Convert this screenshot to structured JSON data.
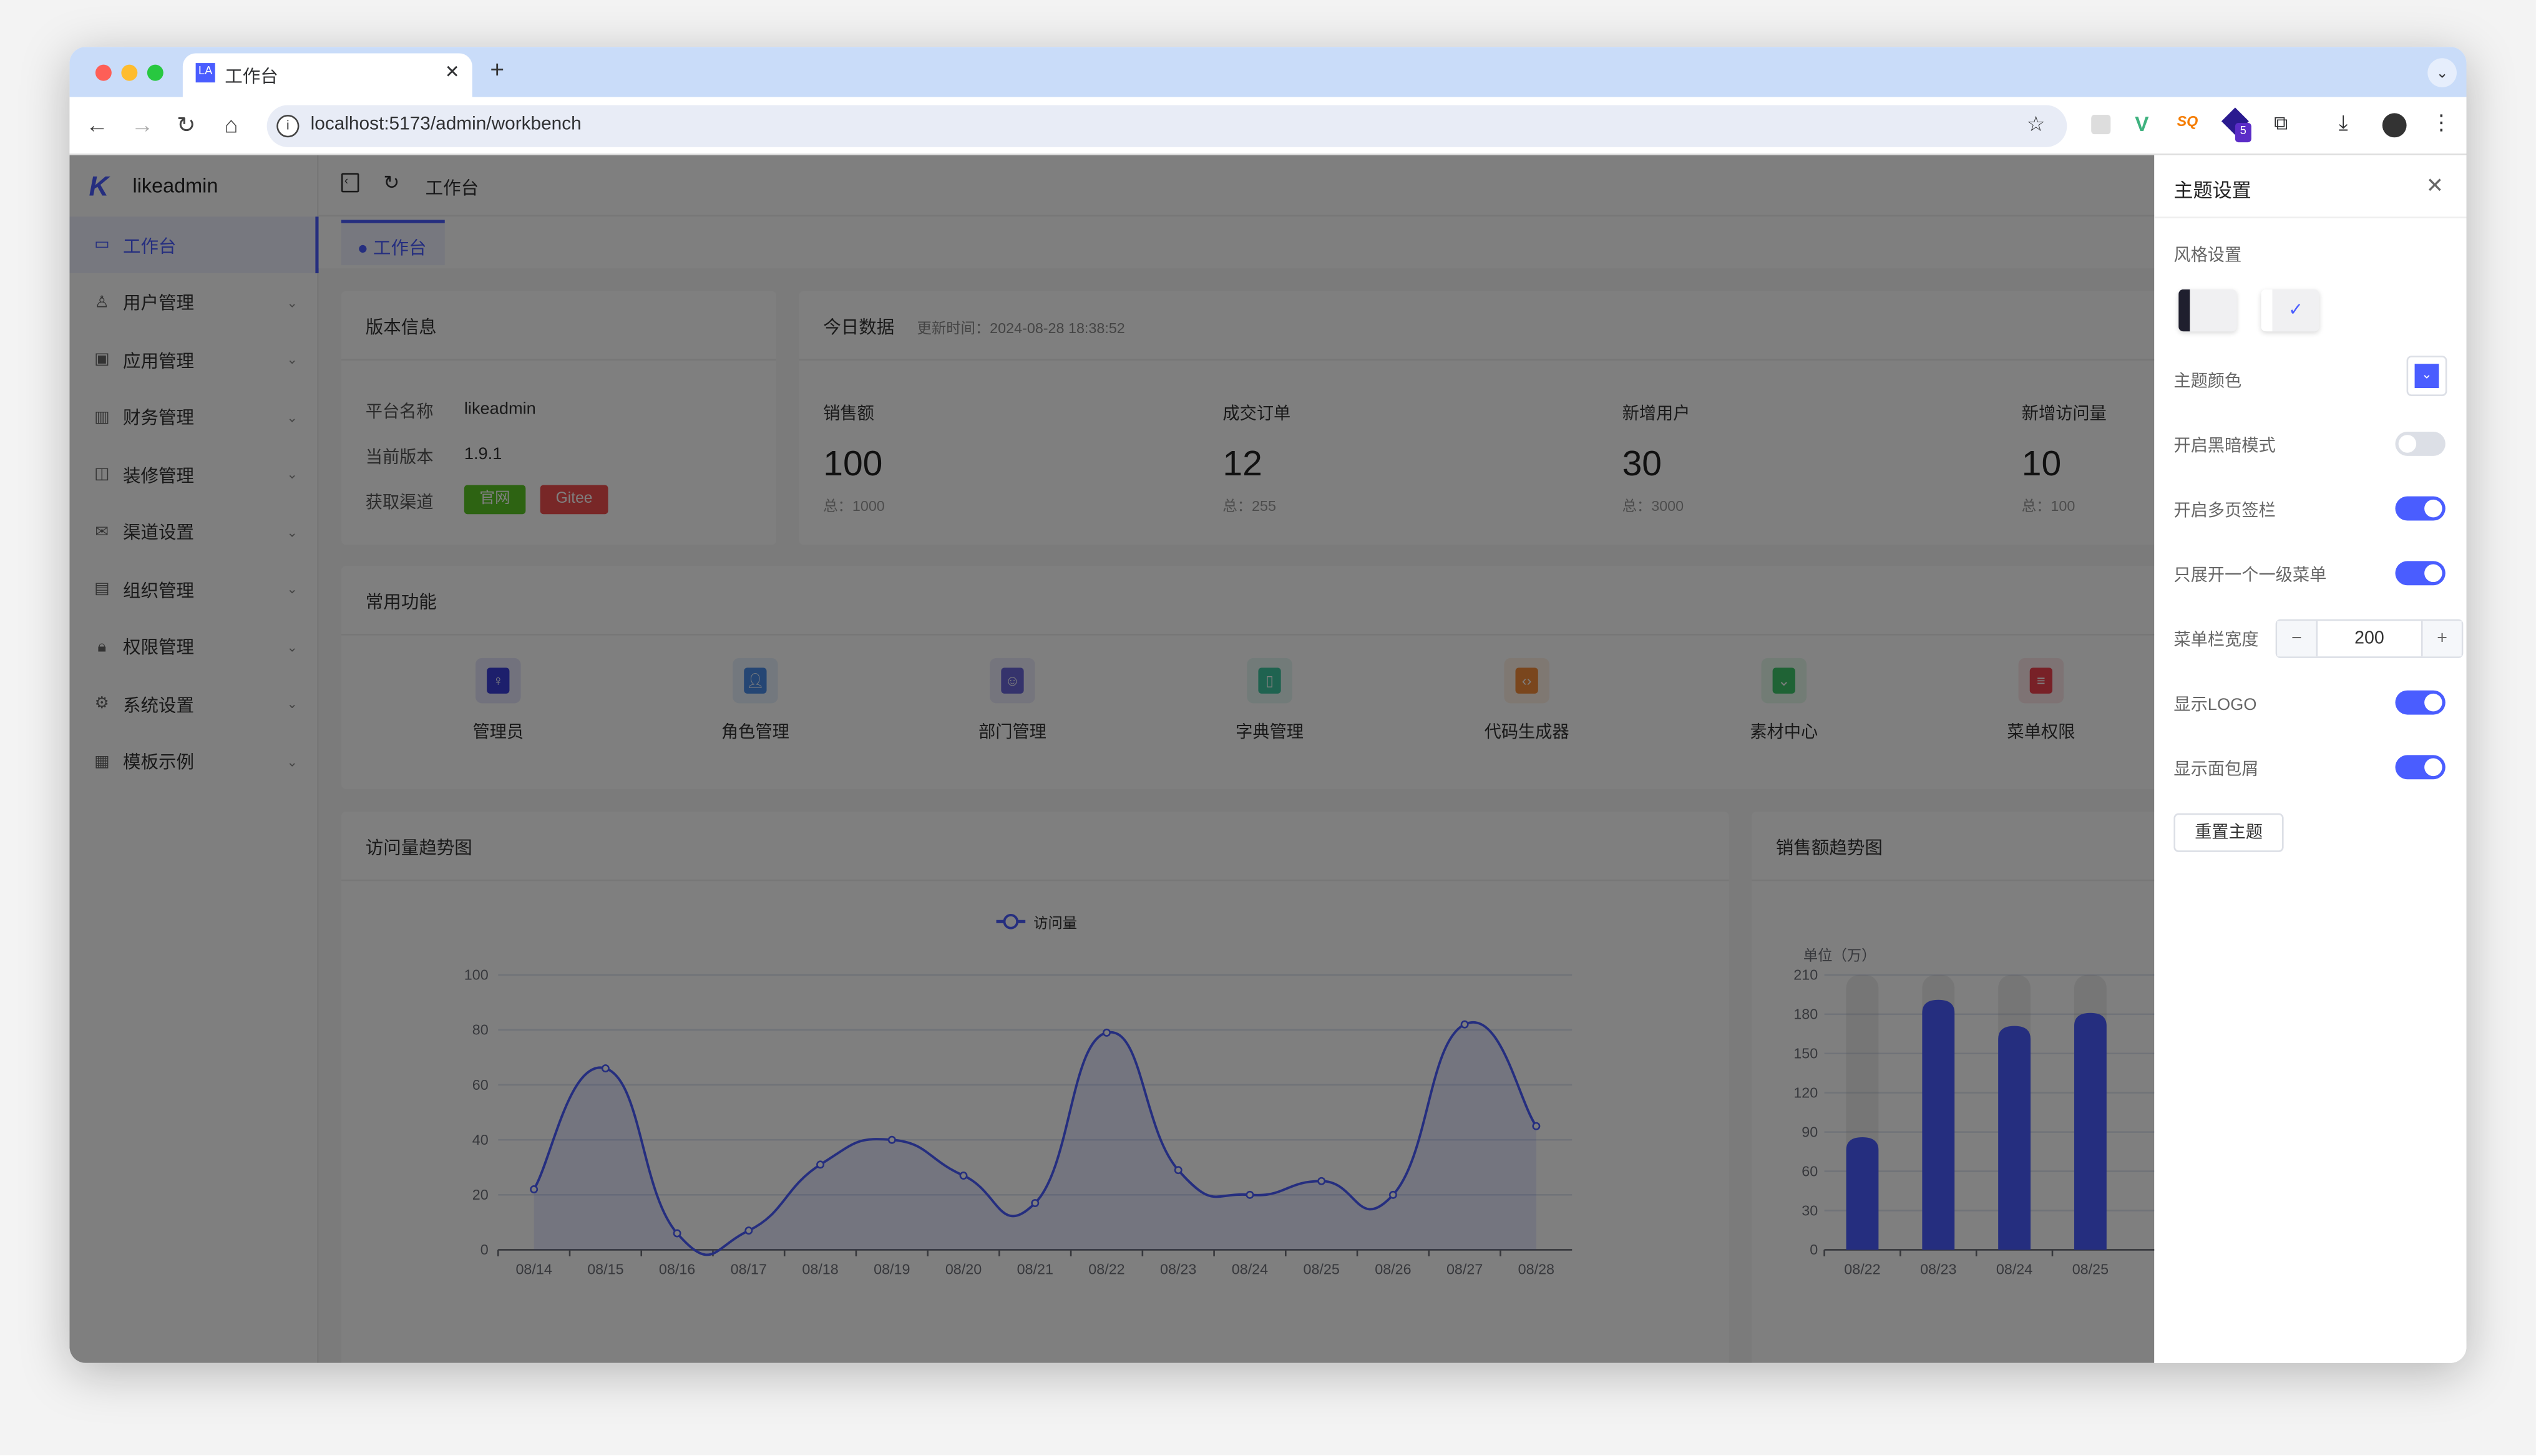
{
  "browser": {
    "tab_title": "工作台",
    "tab_favicon": "LA",
    "url": "localhost:5173/admin/workbench",
    "extension_badge": "5"
  },
  "sidebar": {
    "brand": "likeadmin",
    "items": [
      {
        "label": "工作台",
        "icon": "monitor-icon",
        "active": true
      },
      {
        "label": "用户管理",
        "icon": "user-icon"
      },
      {
        "label": "应用管理",
        "icon": "app-icon"
      },
      {
        "label": "财务管理",
        "icon": "chart-icon"
      },
      {
        "label": "装修管理",
        "icon": "decoration-icon"
      },
      {
        "label": "渠道设置",
        "icon": "message-icon"
      },
      {
        "label": "组织管理",
        "icon": "building-icon"
      },
      {
        "label": "权限管理",
        "icon": "lock-icon"
      },
      {
        "label": "系统设置",
        "icon": "gear-icon"
      },
      {
        "label": "模板示例",
        "icon": "template-icon"
      }
    ]
  },
  "header": {
    "breadcrumb": "工作台",
    "tab": "工作台"
  },
  "version": {
    "title": "版本信息",
    "rows": [
      {
        "label": "平台名称",
        "value": "likeadmin"
      },
      {
        "label": "当前版本",
        "value": "1.9.1"
      },
      {
        "label": "获取渠道"
      }
    ],
    "buttons": [
      {
        "label": "官网",
        "color": "#5ac725"
      },
      {
        "label": "Gitee",
        "color": "#f14e4e"
      }
    ]
  },
  "today": {
    "title": "今日数据",
    "updated": "更新时间：2024-08-28 18:38:52",
    "stats": [
      {
        "label": "销售额",
        "value": "100",
        "total": "总：1000"
      },
      {
        "label": "成交订单",
        "value": "12",
        "total": "总：255"
      },
      {
        "label": "新增用户",
        "value": "30",
        "total": "总：3000"
      },
      {
        "label": "新增访问量",
        "value": "10",
        "total": "总：100"
      }
    ]
  },
  "quick": {
    "title": "常用功能",
    "items": [
      {
        "label": "管理员",
        "color": "#3a3fd8"
      },
      {
        "label": "角色管理",
        "color": "#4a8ce8"
      },
      {
        "label": "部门管理",
        "color": "#6a67d8"
      },
      {
        "label": "字典管理",
        "color": "#3fc6a0"
      },
      {
        "label": "代码生成器",
        "color": "#f58c3a"
      },
      {
        "label": "素材中心",
        "color": "#3ec76a"
      },
      {
        "label": "菜单权限",
        "color": "#f0424f"
      }
    ]
  },
  "chart_data": [
    {
      "type": "line",
      "title": "访问量趋势图",
      "legend": "访问量",
      "legend_position": "top",
      "smooth": true,
      "area": true,
      "color": "#4a5dff",
      "categories": [
        "08/14",
        "08/15",
        "08/16",
        "08/17",
        "08/18",
        "08/19",
        "08/20",
        "08/21",
        "08/22",
        "08/23",
        "08/24",
        "08/25",
        "08/26",
        "08/27",
        "08/28"
      ],
      "series": [
        {
          "name": "访问量",
          "values": [
            22,
            66,
            6,
            7,
            31,
            40,
            27,
            17,
            79,
            29,
            20,
            25,
            20,
            82,
            45
          ]
        }
      ],
      "ylim": [
        0,
        100
      ],
      "yticks": [
        "0",
        "20",
        "40",
        "60",
        "80",
        "100"
      ],
      "grid": true
    },
    {
      "type": "bar",
      "title": "销售额趋势图",
      "ylabel": "单位（万）",
      "color": "#4a5dff",
      "background_bar": true,
      "categories": [
        "08/22",
        "08/23",
        "08/24",
        "08/25"
      ],
      "values": [
        86,
        191,
        171,
        181
      ],
      "ylim": [
        0,
        210
      ],
      "yticks": [
        "0",
        "30",
        "60",
        "90",
        "120",
        "150",
        "180",
        "210"
      ],
      "grid": true
    }
  ],
  "drawer": {
    "title": "主题设置",
    "style_label": "风格设置",
    "theme_color_label": "主题颜色",
    "theme_color": "#4a5dff",
    "dark_mode": {
      "label": "开启黑暗模式",
      "on": false
    },
    "multi_tab": {
      "label": "开启多页签栏",
      "on": true
    },
    "unique_menu": {
      "label": "只展开一个一级菜单",
      "on": true
    },
    "menu_width": {
      "label": "菜单栏宽度",
      "value": "200",
      "minus": "−",
      "plus": "+"
    },
    "show_logo": {
      "label": "显示LOGO",
      "on": true
    },
    "show_breadcrumb": {
      "label": "显示面包屑",
      "on": true
    },
    "reset_label": "重置主题"
  }
}
